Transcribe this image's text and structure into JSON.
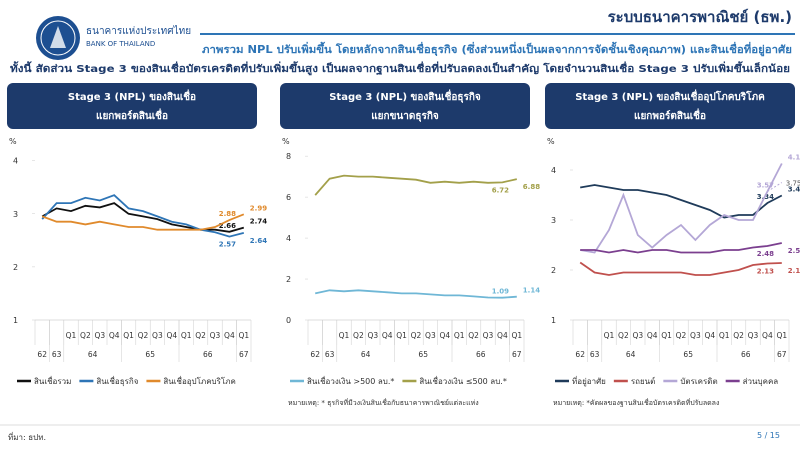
{
  "header": {
    "org_th": "ธนาคารแห่งประเทศไทย",
    "org_en": "BANK OF THAILAND",
    "title": "ระบบธนาคารพาณิชย์ (ธพ.)",
    "headline": "ภาพรวม NPL ปรับเพิ่มขึ้น โดยหลักจากสินเชื่อธุรกิจ (ซึ่งส่วนหนึ่งเป็นผลจากการจัดชั้นเชิงคุณภาพ) และสินเชื่อที่อยู่อาศัย",
    "subline": "ทั้งนี้ สัดส่วน Stage 3 ของสินเชื่อบัตรเครดิตที่ปรับเพิ่มขึ้นสูง เป็นผลจากฐานสินเชื่อที่ปรับลดลงเป็นสำคัญ โดยจำนวนสินเชื่อ Stage 3 ปรับเพิ่มขึ้นเล็กน้อย"
  },
  "chart_data": [
    {
      "type": "line",
      "title": "Stage 3 (NPL) ของสินเชื่อ",
      "subtitle": "แยกพอร์ตสินเชื่อ",
      "y_label": "%",
      "categories": [
        null,
        null,
        "Q1",
        "Q2",
        "Q3",
        "Q4",
        "Q1",
        "Q2",
        "Q3",
        "Q4",
        "Q1",
        "Q2",
        "Q3",
        "Q4",
        "Q1"
      ],
      "category_groups": [
        {
          "label": "62",
          "span": 1
        },
        {
          "label": "63",
          "span": 1
        },
        {
          "label": "64",
          "span": 4
        },
        {
          "label": "65",
          "span": 4
        },
        {
          "label": "66",
          "span": 4
        },
        {
          "label": "67",
          "span": 1
        }
      ],
      "ylim": [
        1,
        4.2
      ],
      "yticks": [
        1,
        2,
        3,
        4
      ],
      "series": [
        {
          "name": "สินเชื่อรวม",
          "color": "#111111",
          "values": [
            2.95,
            3.1,
            3.05,
            3.15,
            3.12,
            3.2,
            3.0,
            2.95,
            2.9,
            2.8,
            2.75,
            2.7,
            2.7,
            2.66,
            2.74
          ]
        },
        {
          "name": "สินเชื่อธุรกิจ",
          "color": "#2e75b6",
          "values": [
            2.9,
            3.2,
            3.2,
            3.3,
            3.25,
            3.35,
            3.1,
            3.05,
            2.95,
            2.85,
            2.8,
            2.7,
            2.65,
            2.57,
            2.64
          ]
        },
        {
          "name": "สินเชื่ออุปโภคบริโภค",
          "color": "#e08a2c",
          "values": [
            2.95,
            2.85,
            2.85,
            2.8,
            2.85,
            2.8,
            2.75,
            2.75,
            2.7,
            2.7,
            2.7,
            2.7,
            2.75,
            2.88,
            2.99
          ]
        }
      ]
    },
    {
      "type": "line",
      "title": "Stage 3 (NPL) ของสินเชื่อธุรกิจ",
      "subtitle": "แยกขนาดธุรกิจ",
      "y_label": "%",
      "categories": [
        null,
        null,
        "Q1",
        "Q2",
        "Q3",
        "Q4",
        "Q1",
        "Q2",
        "Q3",
        "Q4",
        "Q1",
        "Q2",
        "Q3",
        "Q4",
        "Q1"
      ],
      "category_groups": [
        {
          "label": "62",
          "span": 1
        },
        {
          "label": "63",
          "span": 1
        },
        {
          "label": "64",
          "span": 4
        },
        {
          "label": "65",
          "span": 4
        },
        {
          "label": "66",
          "span": 4
        },
        {
          "label": "67",
          "span": 1
        }
      ],
      "ylim": [
        0,
        8.3
      ],
      "yticks": [
        0,
        2,
        4,
        6,
        8
      ],
      "series": [
        {
          "name": "สินเชื่อวงเงิน >500 ลบ.*",
          "color": "#6fb7d6",
          "values": [
            1.3,
            1.45,
            1.4,
            1.45,
            1.4,
            1.35,
            1.3,
            1.3,
            1.25,
            1.2,
            1.2,
            1.15,
            1.1,
            1.09,
            1.14
          ]
        },
        {
          "name": "สินเชื่อวงเงิน ≤500 ลบ.*",
          "color": "#a3a04a",
          "values": [
            6.1,
            6.9,
            7.05,
            7.0,
            7.0,
            6.95,
            6.9,
            6.85,
            6.7,
            6.75,
            6.7,
            6.75,
            6.7,
            6.72,
            6.88
          ]
        }
      ],
      "note": "หมายเหตุ: * ธุรกิจที่มีวงเงินสินเชื่อกับธนาคารพาณิชย์แต่ละแห่ง"
    },
    {
      "type": "line",
      "title": "Stage 3 (NPL) ของสินเชื่ออุปโภคบริโภค",
      "subtitle": "แยกพอร์ตสินเชื่อ",
      "y_label": "%",
      "categories": [
        null,
        null,
        "Q1",
        "Q2",
        "Q3",
        "Q4",
        "Q1",
        "Q2",
        "Q3",
        "Q4",
        "Q1",
        "Q2",
        "Q3",
        "Q4",
        "Q1"
      ],
      "category_groups": [
        {
          "label": "62",
          "span": 1
        },
        {
          "label": "63",
          "span": 1
        },
        {
          "label": "64",
          "span": 4
        },
        {
          "label": "65",
          "span": 4
        },
        {
          "label": "66",
          "span": 4
        },
        {
          "label": "67",
          "span": 1
        }
      ],
      "ylim": [
        1,
        4.4
      ],
      "yticks": [
        1,
        2,
        3,
        4
      ],
      "series": [
        {
          "name": "ที่อยู่อาศัย",
          "color": "#1f3b5a",
          "values": [
            3.65,
            3.7,
            3.65,
            3.6,
            3.6,
            3.55,
            3.5,
            3.4,
            3.3,
            3.2,
            3.05,
            3.1,
            3.1,
            3.34,
            3.49
          ]
        },
        {
          "name": "รถยนต์",
          "color": "#c0504d",
          "values": [
            2.15,
            1.95,
            1.9,
            1.95,
            1.95,
            1.95,
            1.95,
            1.95,
            1.9,
            1.9,
            1.95,
            2.0,
            2.1,
            2.13,
            2.14
          ]
        },
        {
          "name": "บัตรเครดิต",
          "color": "#b4a7d6",
          "values": [
            2.4,
            2.35,
            2.8,
            3.5,
            2.7,
            2.45,
            2.7,
            2.9,
            2.6,
            2.9,
            3.1,
            3.0,
            3.0,
            3.57,
            4.13
          ]
        },
        {
          "name": "ส่วนบุคคล",
          "color": "#7b3f8f",
          "values": [
            2.4,
            2.4,
            2.35,
            2.4,
            2.35,
            2.4,
            2.4,
            2.35,
            2.35,
            2.35,
            2.4,
            2.4,
            2.45,
            2.48,
            2.54
          ]
        }
      ],
      "annotation": {
        "value": 3.75,
        "label": "3.75*"
      },
      "note": "หมายเหตุ: *คัดผลของฐานสินเชื่อบัตรเครดิตที่ปรับลดลง"
    }
  ],
  "footer": {
    "source": "ที่มา: ธปท.",
    "page": "5 / 15"
  }
}
